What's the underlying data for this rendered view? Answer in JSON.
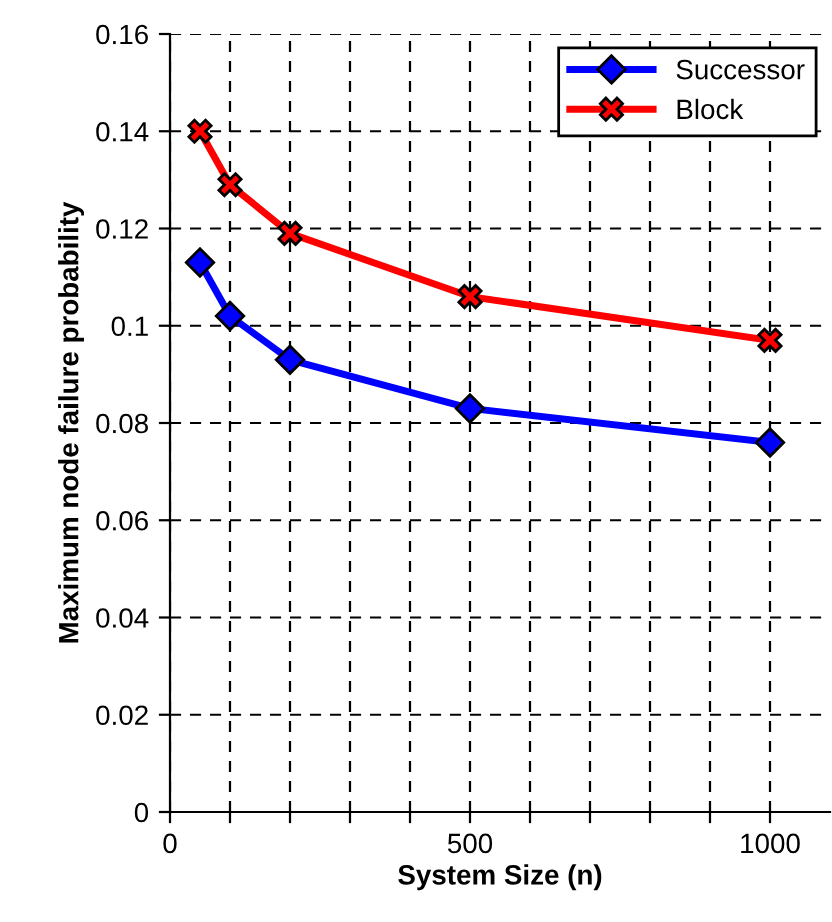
{
  "chart_data": {
    "type": "line",
    "xlabel": "System Size (n)",
    "ylabel": "Maximum node failure probability",
    "x": [
      50,
      100,
      200,
      500,
      1000
    ],
    "series": [
      {
        "name": "Successor",
        "color": "#0000ff",
        "marker": "diamond",
        "values": [
          0.113,
          0.102,
          0.093,
          0.083,
          0.076
        ]
      },
      {
        "name": "Block",
        "color": "#ff0000",
        "marker": "cross",
        "values": [
          0.14,
          0.129,
          0.119,
          0.106,
          0.097
        ]
      }
    ],
    "xlim": [
      0,
      1100
    ],
    "xticks": [
      0,
      {
        "value": 100,
        "label": null
      },
      {
        "value": 200,
        "label": null
      },
      {
        "value": 300,
        "label": null
      },
      {
        "value": 400,
        "label": null
      },
      500,
      {
        "value": 600,
        "label": null
      },
      {
        "value": 700,
        "label": null
      },
      {
        "value": 800,
        "label": null
      },
      {
        "value": 900,
        "label": null
      },
      1000
    ],
    "ylim": [
      0,
      0.16
    ],
    "yticks": [
      0,
      0.02,
      0.04,
      0.06,
      0.08,
      0.1,
      0.12,
      0.14,
      0.16
    ],
    "grid": true,
    "legend": "top right",
    "line_style": "solid"
  }
}
